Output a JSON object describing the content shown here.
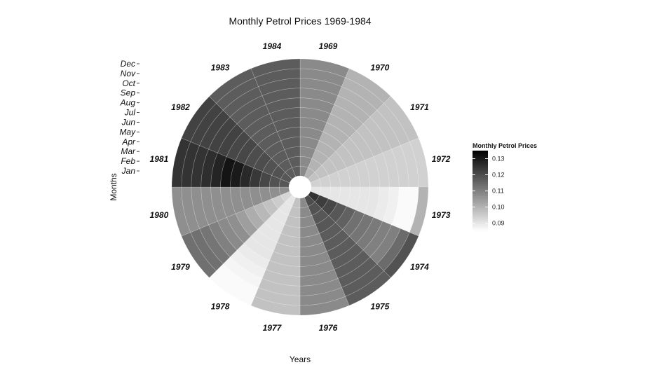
{
  "chart_data": {
    "type": "heatmap",
    "title": "Monthly Petrol Prices 1969-1984",
    "xlabel": "Years",
    "ylabel": "Months",
    "years": [
      "1969",
      "1970",
      "1971",
      "1972",
      "1973",
      "1974",
      "1975",
      "1976",
      "1977",
      "1978",
      "1979",
      "1980",
      "1981",
      "1982",
      "1983",
      "1984"
    ],
    "months": [
      "Jan",
      "Feb",
      "Mar",
      "Apr",
      "May",
      "Jun",
      "Jul",
      "Aug",
      "Sep",
      "Oct",
      "Nov",
      "Dec"
    ],
    "values": [
      [
        0.108,
        0.108,
        0.108,
        0.108,
        0.108,
        0.108,
        0.108,
        0.108,
        0.108,
        0.108,
        0.108,
        0.108
      ],
      [
        0.1,
        0.1,
        0.1,
        0.1,
        0.1,
        0.1,
        0.1,
        0.1,
        0.1,
        0.1,
        0.1,
        0.1
      ],
      [
        0.097,
        0.097,
        0.097,
        0.097,
        0.097,
        0.097,
        0.097,
        0.097,
        0.097,
        0.097,
        0.097,
        0.097
      ],
      [
        0.094,
        0.094,
        0.094,
        0.094,
        0.094,
        0.094,
        0.094,
        0.094,
        0.094,
        0.094,
        0.094,
        0.094
      ],
      [
        0.09,
        0.09,
        0.09,
        0.09,
        0.09,
        0.09,
        0.09,
        0.089,
        0.088,
        0.086,
        0.086,
        0.1
      ],
      [
        0.125,
        0.123,
        0.121,
        0.118,
        0.116,
        0.113,
        0.112,
        0.111,
        0.11,
        0.11,
        0.114,
        0.119
      ],
      [
        0.12,
        0.119,
        0.118,
        0.118,
        0.117,
        0.117,
        0.117,
        0.117,
        0.117,
        0.117,
        0.117,
        0.117
      ],
      [
        0.108,
        0.108,
        0.108,
        0.108,
        0.108,
        0.108,
        0.108,
        0.108,
        0.108,
        0.108,
        0.108,
        0.108
      ],
      [
        0.097,
        0.097,
        0.097,
        0.097,
        0.097,
        0.097,
        0.097,
        0.097,
        0.097,
        0.097,
        0.097,
        0.097
      ],
      [
        0.09,
        0.09,
        0.09,
        0.09,
        0.09,
        0.09,
        0.09,
        0.089,
        0.088,
        0.087,
        0.086,
        0.086
      ],
      [
        0.093,
        0.095,
        0.097,
        0.099,
        0.101,
        0.104,
        0.107,
        0.108,
        0.11,
        0.112,
        0.113,
        0.113
      ],
      [
        0.107,
        0.107,
        0.107,
        0.107,
        0.107,
        0.107,
        0.107,
        0.107,
        0.107,
        0.107,
        0.107,
        0.107
      ],
      [
        0.118,
        0.119,
        0.121,
        0.124,
        0.127,
        0.13,
        0.131,
        0.128,
        0.126,
        0.125,
        0.125,
        0.125
      ],
      [
        0.118,
        0.119,
        0.119,
        0.12,
        0.12,
        0.121,
        0.121,
        0.122,
        0.122,
        0.122,
        0.122,
        0.122
      ],
      [
        0.117,
        0.117,
        0.117,
        0.117,
        0.117,
        0.117,
        0.117,
        0.117,
        0.117,
        0.117,
        0.117,
        0.117
      ],
      [
        0.117,
        0.117,
        0.117,
        0.117,
        0.117,
        0.117,
        0.117,
        0.117,
        0.117,
        0.117,
        0.117,
        0.117
      ]
    ],
    "legend": {
      "title": "Monthly Petrol Prices",
      "ticks": [
        "0.13",
        "0.12",
        "0.11",
        "0.10",
        "0.09"
      ],
      "tick_values": [
        0.13,
        0.12,
        0.11,
        0.1,
        0.09
      ],
      "range": [
        0.085,
        0.135
      ],
      "placement": "right"
    },
    "color_low": "#ffffff",
    "color_high": "#000000",
    "grid": true
  }
}
